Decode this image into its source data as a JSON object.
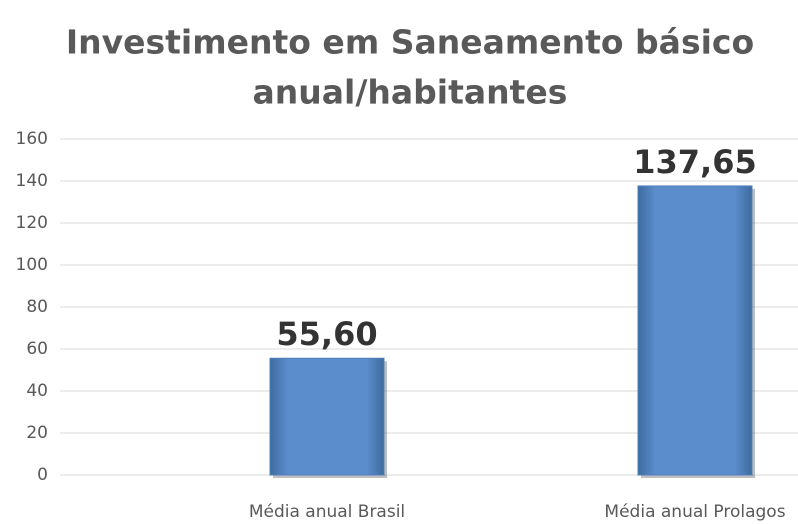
{
  "chart_data": {
    "type": "bar",
    "title": [
      "Investimento em Saneamento básico",
      "anual/habitantes"
    ],
    "categories": [
      "Média anual Brasil",
      "Média anual Prolagos"
    ],
    "values": [
      55.6,
      137.65
    ],
    "value_labels": [
      "55,60",
      "137,65"
    ],
    "color": "#4f81bd",
    "ylim": [
      0,
      160
    ],
    "yticks": [
      0,
      20,
      40,
      60,
      80,
      100,
      120,
      140,
      160
    ],
    "grid": true
  }
}
